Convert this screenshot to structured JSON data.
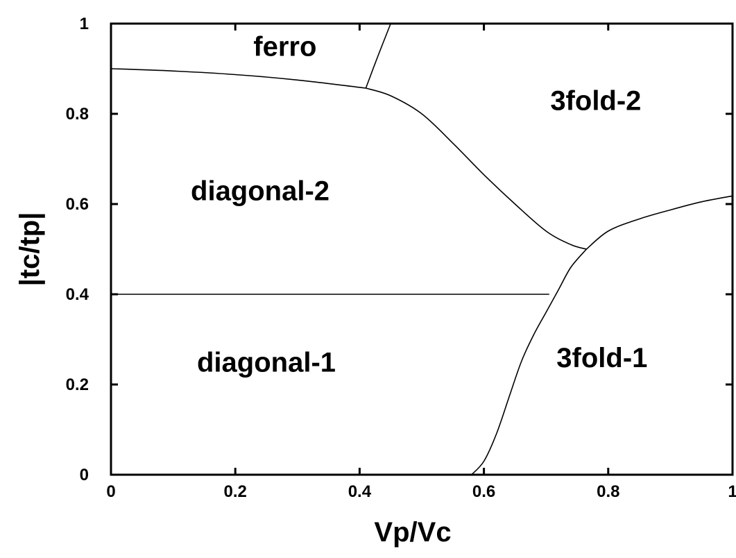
{
  "chart_data": {
    "type": "line",
    "title": "",
    "xlabel": "Vp/Vc",
    "ylabel": "|tc/tp|",
    "xlim": [
      0,
      1
    ],
    "ylim": [
      0,
      1
    ],
    "x_ticks": [
      0,
      0.2,
      0.4,
      0.6,
      0.8,
      1
    ],
    "x_tick_labels": [
      "0",
      "0.2",
      "0.4",
      "0.6",
      "0.8",
      "1"
    ],
    "y_ticks": [
      0,
      0.2,
      0.4,
      0.6,
      0.8,
      1
    ],
    "y_tick_labels": [
      "0",
      "0.2",
      "0.4",
      "0.6",
      "0.8",
      "1"
    ],
    "grid": false,
    "legend": "none",
    "series": [
      {
        "x": [
          0,
          0.1,
          0.2,
          0.3,
          0.41
        ],
        "y": [
          0.9,
          0.895,
          0.887,
          0.875,
          0.857
        ]
      },
      {
        "x": [
          0.41,
          0.43,
          0.45
        ],
        "y": [
          0.857,
          0.93,
          1.0
        ]
      },
      {
        "x": [
          0.41,
          0.45,
          0.5,
          0.55,
          0.6,
          0.65,
          0.7,
          0.74,
          0.765
        ],
        "y": [
          0.857,
          0.84,
          0.8,
          0.735,
          0.665,
          0.6,
          0.54,
          0.51,
          0.5
        ]
      },
      {
        "x": [
          0.765,
          0.8,
          0.85,
          0.9,
          0.95,
          1.0
        ],
        "y": [
          0.5,
          0.54,
          0.567,
          0.587,
          0.605,
          0.618
        ]
      },
      {
        "x": [
          0.58,
          0.6,
          0.62,
          0.64,
          0.66,
          0.68,
          0.7,
          0.72,
          0.74,
          0.765
        ],
        "y": [
          0,
          0.03,
          0.09,
          0.17,
          0.25,
          0.31,
          0.36,
          0.41,
          0.46,
          0.5
        ]
      },
      {
        "x": [
          0,
          0.705
        ],
        "y": [
          0.4,
          0.4
        ]
      }
    ],
    "annotations": [
      {
        "text": "ferro",
        "x": 0.28,
        "y": 0.95
      },
      {
        "text": "3fold-2",
        "x": 0.78,
        "y": 0.83
      },
      {
        "text": "diagonal-2",
        "x": 0.24,
        "y": 0.63
      },
      {
        "text": "diagonal-1",
        "x": 0.25,
        "y": 0.25
      },
      {
        "text": "3fold-1",
        "x": 0.79,
        "y": 0.26
      }
    ]
  }
}
